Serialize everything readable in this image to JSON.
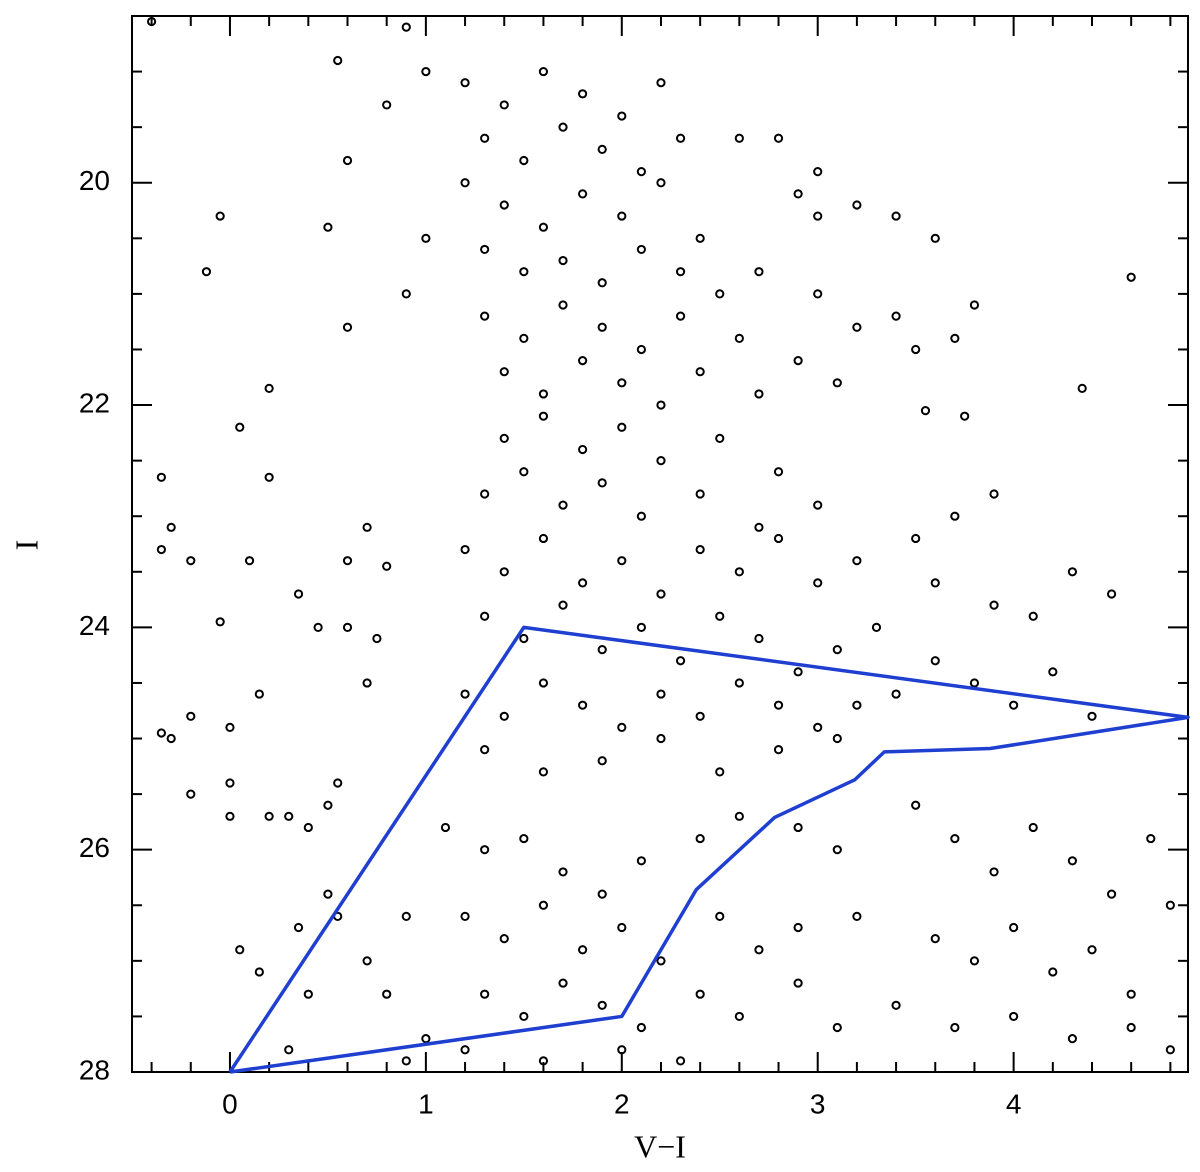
{
  "chart_data": {
    "type": "scatter",
    "xlabel": "V−I",
    "ylabel": "I",
    "xlim": [
      -0.5,
      4.89
    ],
    "ylim": [
      28,
      18.5
    ],
    "xticks": [
      0,
      1,
      2,
      3,
      4
    ],
    "yticks": [
      20,
      22,
      24,
      26,
      28
    ],
    "xminorticks": [
      -0.4,
      -0.2,
      0.2,
      0.4,
      0.6,
      0.8,
      1.2,
      1.4,
      1.6,
      1.8,
      2.2,
      2.4,
      2.6,
      2.8,
      3.2,
      3.4,
      3.6,
      3.8,
      4.2,
      4.4,
      4.6,
      4.8
    ],
    "yminorticks": [
      18.5,
      19,
      19.5,
      20.5,
      21,
      21.5,
      22.5,
      23,
      23.5,
      24.5,
      25,
      25.5,
      26.5,
      27,
      27.5
    ],
    "color": "#000000",
    "x": [
      1.2,
      1.4,
      1.6,
      1.8,
      2.0,
      2.2,
      1.3,
      1.5,
      1.7,
      1.9,
      2.1,
      2.3,
      1.2,
      1.4,
      1.6,
      1.8,
      2.0,
      2.2,
      2.4,
      1.3,
      1.5,
      1.7,
      1.9,
      2.1,
      2.3,
      2.5,
      1.3,
      1.5,
      1.7,
      1.9,
      2.1,
      2.3,
      2.6,
      1.4,
      1.6,
      1.8,
      2.0,
      2.2,
      2.4,
      2.7,
      1.4,
      1.6,
      1.8,
      2.0,
      2.2,
      2.5,
      2.8,
      1.3,
      1.5,
      1.7,
      1.9,
      2.1,
      2.4,
      2.7,
      3.0,
      0.9,
      1.0,
      0.8,
      0.6,
      0.5,
      1.0,
      0.9,
      0.6,
      2.6,
      2.8,
      2.9,
      3.0,
      3.2,
      3.4,
      3.6,
      2.7,
      3.0,
      3.2,
      3.0,
      -0.05,
      -0.12,
      -0.4,
      0.55,
      4.6,
      3.4,
      3.8,
      2.9,
      3.1,
      3.5,
      3.7,
      4.35,
      3.75,
      3.55,
      1.2,
      1.4,
      1.6,
      1.8,
      2.0,
      2.2,
      2.4,
      2.6,
      2.8,
      3.0,
      3.2,
      1.3,
      1.5,
      1.7,
      1.9,
      2.1,
      2.3,
      2.5,
      2.7,
      2.9,
      3.1,
      3.3,
      1.2,
      1.4,
      1.6,
      1.8,
      2.0,
      2.2,
      2.4,
      2.6,
      2.8,
      3.0,
      3.2,
      1.3,
      1.6,
      1.9,
      2.2,
      2.5,
      2.8,
      3.1,
      3.4,
      3.6,
      3.8,
      4.0,
      4.2,
      4.4,
      3.6,
      3.9,
      4.1,
      4.3,
      4.5,
      3.5,
      3.7,
      3.9,
      1.1,
      1.3,
      1.5,
      1.7,
      1.9,
      2.1,
      2.4,
      2.6,
      2.9,
      3.1,
      1.2,
      1.4,
      1.6,
      1.8,
      2.0,
      2.2,
      2.5,
      2.7,
      2.9,
      3.2,
      1.3,
      1.5,
      1.7,
      1.9,
      2.1,
      2.4,
      2.6,
      2.9,
      3.1,
      1.2,
      1.6,
      2.0,
      2.3,
      3.5,
      3.7,
      3.9,
      4.1,
      4.3,
      4.5,
      4.7,
      4.8,
      3.6,
      3.8,
      4.0,
      4.2,
      4.4,
      4.6,
      3.4,
      3.7,
      4.0,
      4.3,
      4.6,
      4.8,
      -0.35,
      -0.3,
      -0.2,
      -0.35,
      -0.2,
      -0.3,
      -0.35,
      -0.2,
      -0.05,
      0.05,
      0.2,
      0.2,
      0.1,
      0.35,
      0.45,
      0.6,
      0.0,
      0.0,
      0.0,
      0.15,
      0.2,
      0.3,
      0.4,
      0.5,
      0.55,
      0.7,
      0.75,
      0.8,
      0.7,
      0.6,
      0.35,
      0.55,
      0.7,
      0.9,
      0.05,
      0.15,
      0.5,
      0.3,
      0.8,
      1.0,
      0.9,
      0.4
    ],
    "values": [
      19.1,
      19.3,
      19.0,
      19.2,
      19.4,
      19.1,
      19.6,
      19.8,
      19.5,
      19.7,
      19.9,
      19.6,
      20.0,
      20.2,
      20.4,
      20.1,
      20.3,
      20.0,
      20.5,
      20.6,
      20.8,
      20.7,
      20.9,
      20.6,
      20.8,
      21.0,
      21.2,
      21.4,
      21.1,
      21.3,
      21.5,
      21.2,
      21.4,
      21.7,
      21.9,
      21.6,
      21.8,
      22.0,
      21.7,
      21.9,
      22.3,
      22.1,
      22.4,
      22.2,
      22.5,
      22.3,
      22.6,
      22.8,
      22.6,
      22.9,
      22.7,
      23.0,
      22.8,
      23.1,
      22.9,
      18.6,
      19.0,
      19.3,
      19.8,
      20.4,
      20.5,
      21.0,
      21.3,
      19.6,
      19.6,
      20.1,
      19.9,
      20.2,
      20.3,
      20.5,
      20.8,
      21.0,
      21.3,
      20.3,
      20.3,
      20.8,
      18.55,
      18.9,
      20.85,
      21.2,
      21.1,
      21.6,
      21.8,
      21.5,
      21.4,
      21.85,
      22.1,
      22.05,
      23.3,
      23.5,
      23.2,
      23.6,
      23.4,
      23.7,
      23.3,
      23.5,
      23.2,
      23.6,
      23.4,
      23.9,
      24.1,
      23.8,
      24.2,
      24.0,
      24.3,
      23.9,
      24.1,
      24.4,
      24.2,
      24.0,
      24.6,
      24.8,
      24.5,
      24.7,
      24.9,
      24.6,
      24.8,
      24.5,
      24.7,
      24.9,
      24.7,
      25.1,
      25.3,
      25.2,
      25.0,
      25.3,
      25.1,
      25.0,
      24.6,
      24.3,
      24.5,
      24.7,
      24.4,
      24.8,
      23.6,
      23.8,
      23.9,
      23.5,
      23.7,
      23.2,
      23.0,
      22.8,
      25.8,
      26.0,
      25.9,
      26.2,
      26.4,
      26.1,
      25.9,
      25.7,
      25.8,
      26.0,
      26.6,
      26.8,
      26.5,
      26.9,
      26.7,
      27.0,
      26.6,
      26.9,
      26.7,
      26.6,
      27.3,
      27.5,
      27.2,
      27.4,
      27.6,
      27.3,
      27.5,
      27.2,
      27.6,
      27.8,
      27.9,
      27.8,
      27.9,
      25.6,
      25.9,
      26.2,
      25.8,
      26.1,
      26.4,
      25.9,
      26.5,
      26.8,
      27.0,
      26.7,
      27.1,
      26.9,
      27.3,
      27.4,
      27.6,
      27.5,
      27.7,
      27.6,
      27.8,
      22.65,
      23.1,
      23.4,
      23.3,
      24.8,
      25.0,
      24.95,
      25.5,
      23.95,
      22.2,
      21.85,
      22.65,
      23.4,
      23.7,
      24.0,
      24.0,
      24.9,
      25.4,
      25.7,
      24.6,
      25.7,
      25.7,
      25.8,
      25.6,
      25.4,
      24.5,
      24.1,
      23.45,
      23.1,
      23.4,
      26.7,
      26.6,
      27.0,
      26.6,
      26.9,
      27.1,
      26.4,
      27.8,
      27.3,
      27.7,
      27.9,
      27.3
    ],
    "outline": {
      "color": "#1f3fd0",
      "x": [
        0,
        1.5,
        4.89,
        3.88,
        3.34,
        3.19,
        2.78,
        2.38,
        2.0,
        0
      ],
      "values": [
        28,
        24,
        24.81,
        25.09,
        25.12,
        25.37,
        25.71,
        26.36,
        27.5,
        28
      ]
    }
  }
}
